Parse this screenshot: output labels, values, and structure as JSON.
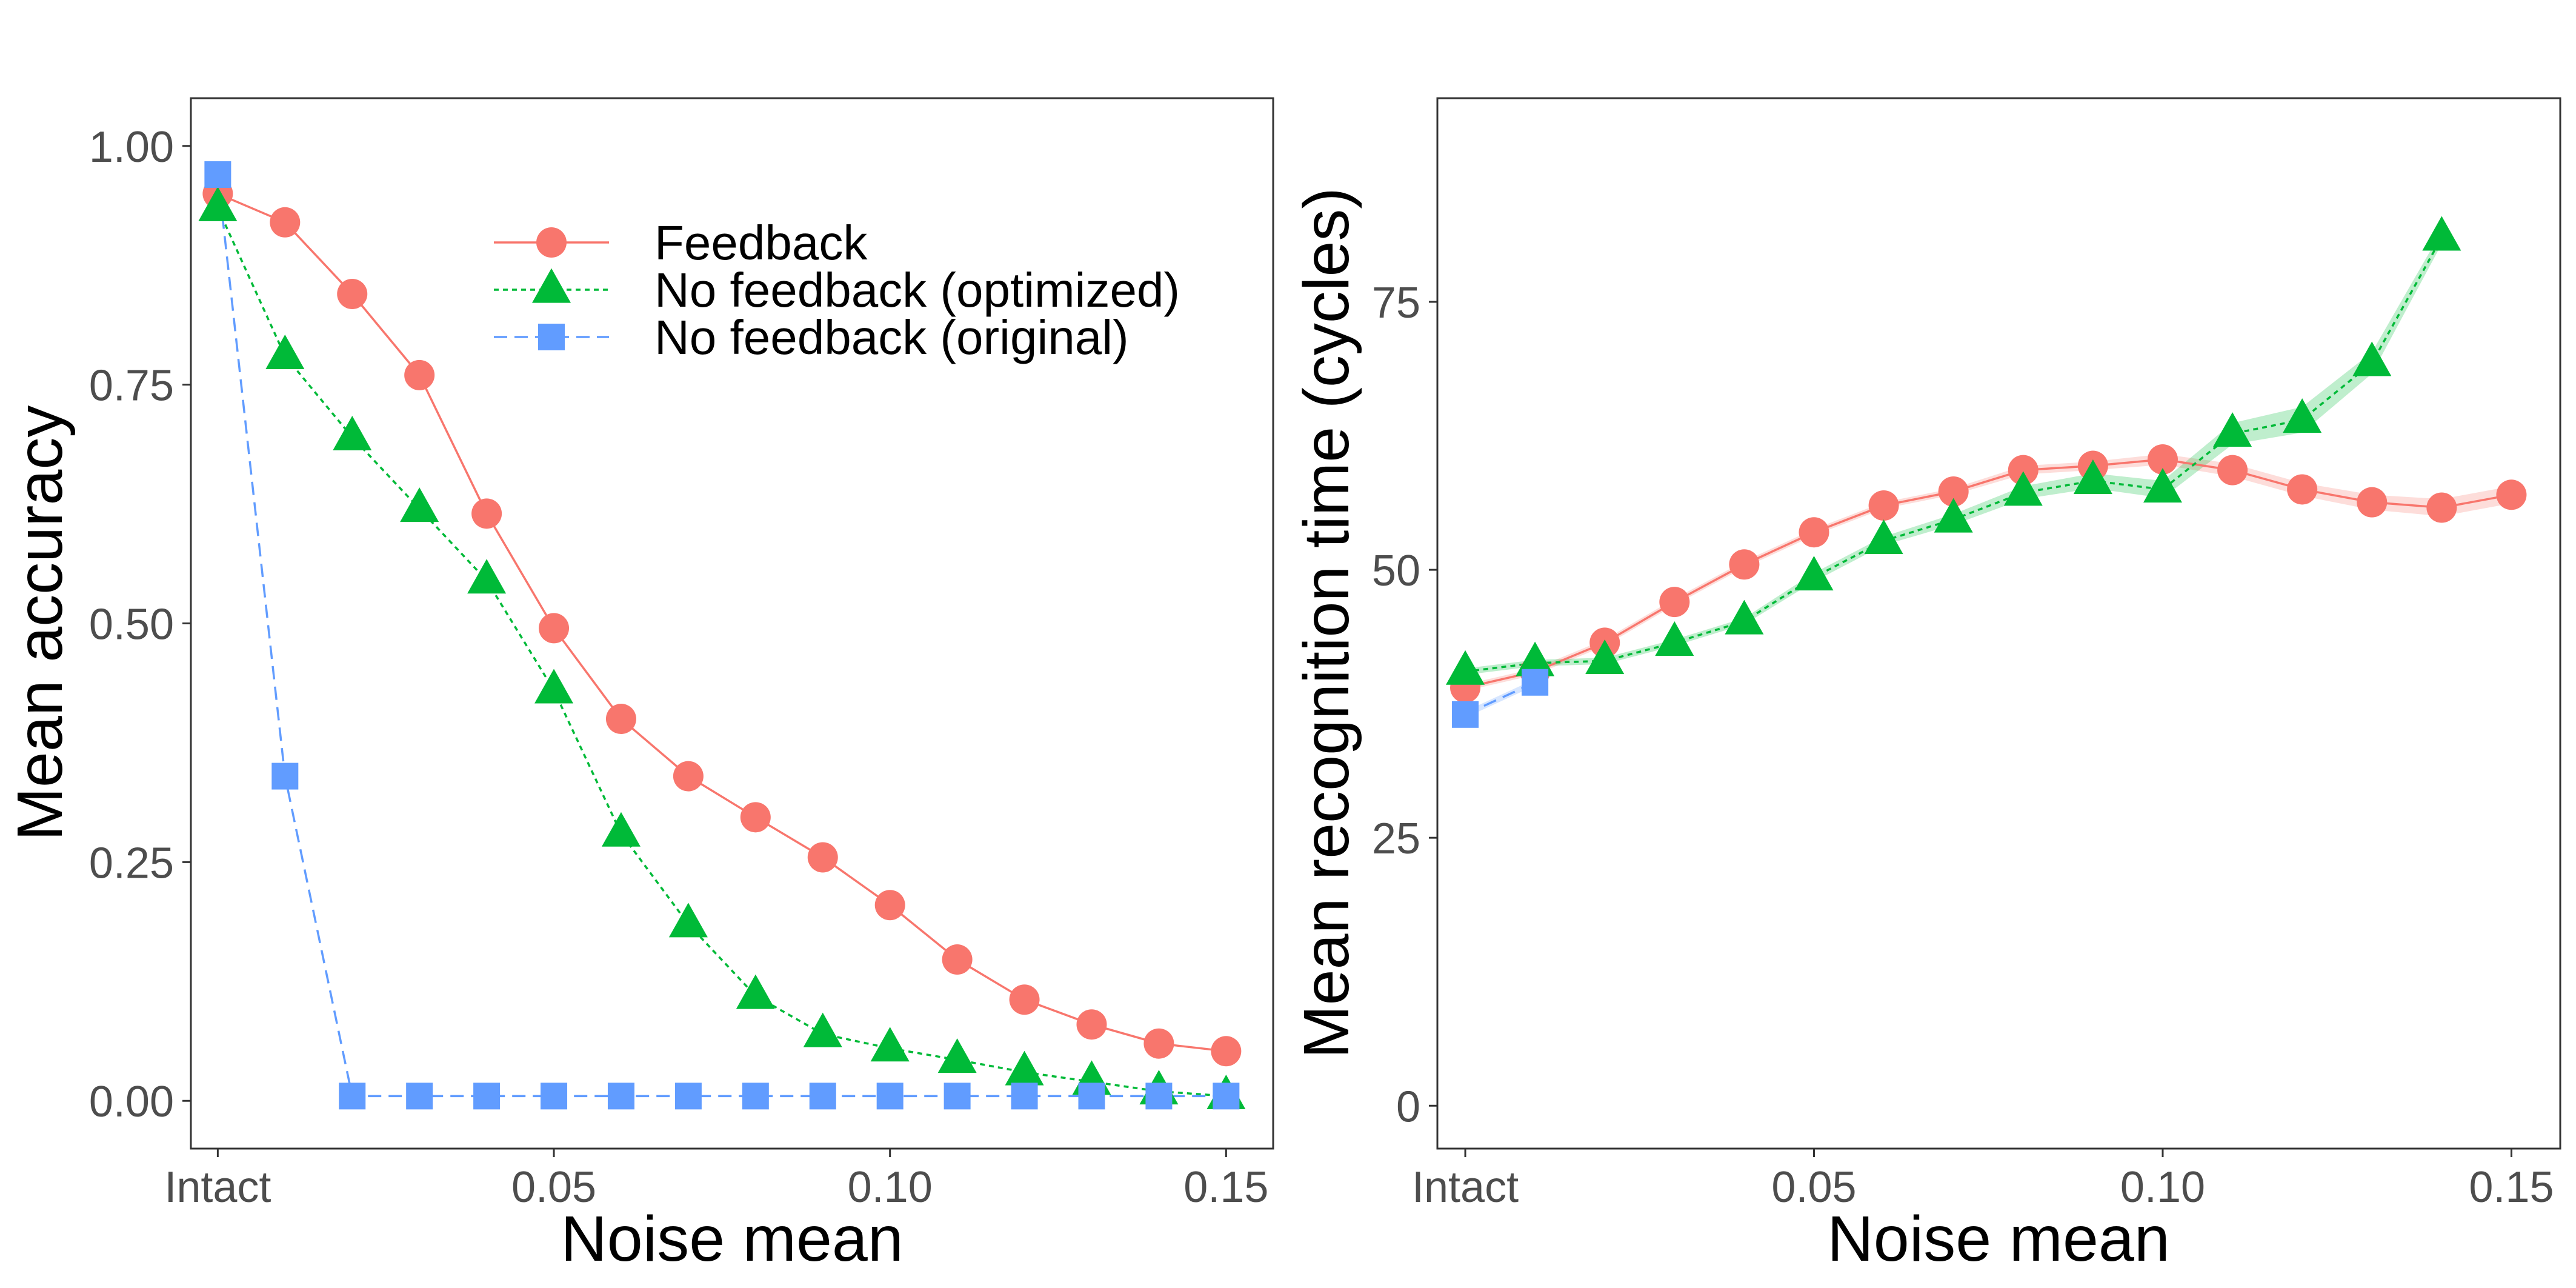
{
  "colors": {
    "feedback": "#F8766D",
    "optimized": "#00BA38",
    "original": "#619CFF",
    "tick_text": "#4d4d4d",
    "panel_border": "#333333"
  },
  "legend": {
    "items": [
      {
        "label": "Feedback",
        "series": "feedback",
        "shape": "circle",
        "dash": "solid"
      },
      {
        "label": "No feedback (optimized)",
        "series": "optimized",
        "shape": "triangle",
        "dash": "dotted"
      },
      {
        "label": "No feedback (original)",
        "series": "original",
        "shape": "square",
        "dash": "dashed"
      }
    ],
    "placement": "top-right of left panel"
  },
  "chart_data": [
    {
      "type": "line",
      "xlabel": "Noise mean",
      "ylabel": "Mean accuracy",
      "xlim": [
        -0.004,
        0.157
      ],
      "ylim": [
        -0.05,
        1.05
      ],
      "x_ticks": [
        {
          "value": 0,
          "label": "Intact"
        },
        {
          "value": 0.05,
          "label": "0.05"
        },
        {
          "value": 0.1,
          "label": "0.10"
        },
        {
          "value": 0.15,
          "label": "0.15"
        }
      ],
      "y_ticks": [
        {
          "value": 0,
          "label": "0.00"
        },
        {
          "value": 0.25,
          "label": "0.25"
        },
        {
          "value": 0.5,
          "label": "0.50"
        },
        {
          "value": 0.75,
          "label": "0.75"
        },
        {
          "value": 1.0,
          "label": "1.00"
        }
      ],
      "grid": false,
      "series": [
        {
          "name": "Feedback",
          "key": "feedback",
          "shape": "circle",
          "dash": "solid",
          "x": [
            0,
            0.01,
            0.02,
            0.03,
            0.04,
            0.05,
            0.06,
            0.07,
            0.08,
            0.09,
            0.1,
            0.11,
            0.12,
            0.13,
            0.14,
            0.15
          ],
          "y": [
            0.95,
            0.92,
            0.845,
            0.76,
            0.615,
            0.495,
            0.4,
            0.34,
            0.297,
            0.255,
            0.205,
            0.148,
            0.106,
            0.08,
            0.06,
            0.052
          ]
        },
        {
          "name": "No feedback (optimized)",
          "key": "optimized",
          "shape": "triangle",
          "dash": "dotted",
          "x": [
            0,
            0.01,
            0.02,
            0.03,
            0.04,
            0.05,
            0.06,
            0.07,
            0.08,
            0.09,
            0.1,
            0.11,
            0.12,
            0.13,
            0.14,
            0.15
          ],
          "y": [
            0.935,
            0.78,
            0.695,
            0.62,
            0.545,
            0.43,
            0.28,
            0.185,
            0.11,
            0.07,
            0.055,
            0.043,
            0.03,
            0.02,
            0.01,
            0.005
          ]
        },
        {
          "name": "No feedback (original)",
          "key": "original",
          "shape": "square",
          "dash": "dashed",
          "x": [
            0,
            0.01,
            0.02,
            0.03,
            0.04,
            0.05,
            0.06,
            0.07,
            0.08,
            0.09,
            0.1,
            0.11,
            0.12,
            0.13,
            0.14,
            0.15
          ],
          "y": [
            0.97,
            0.34,
            0.005,
            0.005,
            0.005,
            0.005,
            0.005,
            0.005,
            0.005,
            0.005,
            0.005,
            0.005,
            0.005,
            0.005,
            0.005,
            0.005
          ]
        }
      ]
    },
    {
      "type": "line",
      "xlabel": "Noise mean",
      "ylabel": "Mean recognition time (cycles)",
      "xlim": [
        -0.004,
        0.157
      ],
      "ylim": [
        -4,
        94
      ],
      "x_ticks": [
        {
          "value": 0,
          "label": "Intact"
        },
        {
          "value": 0.05,
          "label": "0.05"
        },
        {
          "value": 0.1,
          "label": "0.10"
        },
        {
          "value": 0.15,
          "label": "0.15"
        }
      ],
      "y_ticks": [
        {
          "value": 0,
          "label": "0"
        },
        {
          "value": 25,
          "label": "25"
        },
        {
          "value": 50,
          "label": "50"
        },
        {
          "value": 75,
          "label": "75"
        }
      ],
      "grid": false,
      "series": [
        {
          "name": "Feedback",
          "key": "feedback",
          "shape": "circle",
          "dash": "solid",
          "x": [
            0,
            0.01,
            0.02,
            0.03,
            0.04,
            0.05,
            0.06,
            0.07,
            0.08,
            0.09,
            0.1,
            0.11,
            0.12,
            0.13,
            0.14,
            0.15
          ],
          "y": [
            39.0,
            40.5,
            43.2,
            47.0,
            50.5,
            53.5,
            56.0,
            57.3,
            59.3,
            59.7,
            60.3,
            59.3,
            57.5,
            56.3,
            55.8,
            57.0
          ],
          "band": [
            0.3,
            0.3,
            0.3,
            0.3,
            0.3,
            0.3,
            0.3,
            0.3,
            0.4,
            0.4,
            0.5,
            0.6,
            0.6,
            0.7,
            0.8,
            0.8
          ]
        },
        {
          "name": "No feedback (optimized)",
          "key": "optimized",
          "shape": "triangle",
          "dash": "dotted",
          "x": [
            0,
            0.01,
            0.02,
            0.03,
            0.04,
            0.05,
            0.06,
            0.07,
            0.08,
            0.09,
            0.1,
            0.11,
            0.12,
            0.13,
            0.14
          ],
          "y": [
            40.5,
            41.3,
            41.5,
            43.2,
            45.2,
            49.3,
            52.7,
            54.7,
            57.2,
            58.3,
            57.5,
            62.7,
            64.0,
            69.3,
            81.0
          ],
          "band": [
            0.3,
            0.3,
            0.3,
            0.3,
            0.3,
            0.4,
            0.4,
            0.5,
            0.6,
            0.7,
            0.8,
            1.0,
            1.2,
            1.0,
            0.6
          ]
        },
        {
          "name": "No feedback (original)",
          "key": "original",
          "shape": "square",
          "dash": "dashed",
          "x": [
            0,
            0.01
          ],
          "y": [
            36.5,
            39.5
          ],
          "band": [
            0.3,
            0.3
          ]
        }
      ]
    }
  ]
}
